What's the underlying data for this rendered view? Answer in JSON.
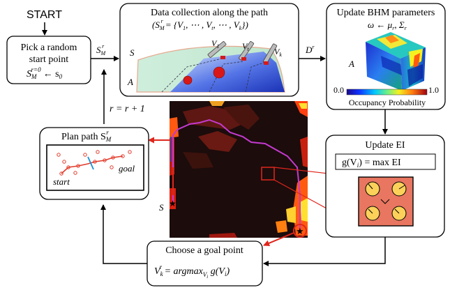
{
  "start_label": "START",
  "pick": {
    "line1": "Pick a random",
    "line2": "start point",
    "formula_lhs_base": "S",
    "formula_lhs_sub": "M",
    "formula_lhs_sup": "r=0",
    "formula_rhs": "← s",
    "formula_rhs_sub": "0"
  },
  "arrow_label_sm": {
    "base": "S",
    "sub": "M",
    "sup": "r"
  },
  "data_collection": {
    "title": "Data collection along the path",
    "formula": "(S",
    "formula_sub": "M",
    "formula_sup": "r",
    "formula_rest": " = {V",
    "formula_v1_sub": "1",
    "formula_mid": ", ⋯ , V",
    "formula_vt_sub": "t",
    "formula_mid2": ", ⋯ , V",
    "formula_vk_sub": "k",
    "formula_end": "})",
    "label_S": "S",
    "label_A": "A",
    "v1": "V",
    "v1_sub": "1",
    "vt": "V",
    "vt_sub": "t",
    "vk": "V",
    "vk_sub": "k"
  },
  "arrow_label_dr": {
    "base": "D",
    "sup": "r"
  },
  "bhm": {
    "title": "Update BHM parameters",
    "formula": "ω ← μ",
    "formula_sub1": "r",
    "formula_mid": ", Σ",
    "formula_sub2": "r",
    "label_A": "A",
    "cb_min": "0.0",
    "cb_max": "1.0",
    "cb_label": "Occupancy Probability"
  },
  "loop_label": "r = r + 1",
  "plan": {
    "title": "Plan path S",
    "title_sub": "M",
    "title_sup": "r",
    "start": "start",
    "goal": "goal"
  },
  "map_label_S": "S",
  "ei": {
    "title": "Update EI",
    "formula": "g(V",
    "formula_sub": "i",
    "formula_rest": ") = max EI"
  },
  "goal": {
    "title": "Choose a goal point",
    "formula_base": "V",
    "formula_sub": "k",
    "formula_sup": "r",
    "formula_rest": " = argmax",
    "formula_argsub": "V",
    "formula_argsub_i": "i",
    "formula_end": " g(V",
    "formula_end_sub": "i",
    "formula_close": ")"
  },
  "colors": {
    "map_bg": "#1c0c0c",
    "map_dark_red": "#6a1a12",
    "path_purple": "#c43ad0",
    "arrow_red": "#e0261c",
    "ei_box": "#e87660",
    "ei_node": "#fbd15a",
    "plan_node": "#e23a2a",
    "plan_blue": "#1a8fd6",
    "accent_blue_star": "#3344dd"
  }
}
